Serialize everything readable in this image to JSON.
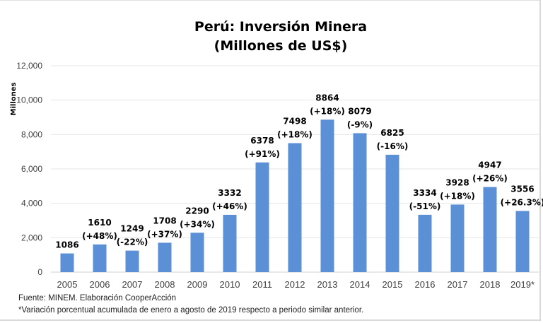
{
  "chart_data": {
    "type": "bar",
    "title": "Perú: Inversión Minera",
    "subtitle": "(Millones de US$)",
    "ylabel": "Millones",
    "xlabel": "",
    "ylim": [
      0,
      12000
    ],
    "yticks": [
      0,
      2000,
      4000,
      6000,
      8000,
      10000,
      12000
    ],
    "ytick_labels": [
      "0",
      "2,000",
      "4,000",
      "6,000",
      "8,000",
      "10,000",
      "12,000"
    ],
    "grid": true,
    "bar_color": "#5b8fd6",
    "categories": [
      "2005",
      "2006",
      "2007",
      "2008",
      "2009",
      "2010",
      "2011",
      "2012",
      "2013",
      "2014",
      "2015",
      "2016",
      "2017",
      "2018",
      "2019*"
    ],
    "values": [
      1086,
      1610,
      1249,
      1708,
      2290,
      3332,
      6378,
      7498,
      8864,
      8079,
      6825,
      3334,
      3928,
      4947,
      3556
    ],
    "value_labels": [
      "1086",
      "1610",
      "1249",
      "1708",
      "2290",
      "3332",
      "6378",
      "7498",
      "8864",
      "8079",
      "6825",
      "3334",
      "3928",
      "4947",
      "3556"
    ],
    "change_labels": [
      "",
      "(+48%)",
      "(-22%)",
      "(+37%)",
      "(+34%)",
      "(+46%)",
      "(+91%)",
      "(+18%)",
      "(+18%)",
      "(-9%)",
      "(-16%)",
      "(-51%)",
      "(+18%)",
      "(+26%)",
      "(+26.3%)"
    ]
  },
  "notes": {
    "source": "Fuente: MINEM. Elaboración CooperAcción",
    "footnote": "*Variación porcentual acumulada de enero a agosto de 2019 respecto a periodo similar anterior."
  }
}
